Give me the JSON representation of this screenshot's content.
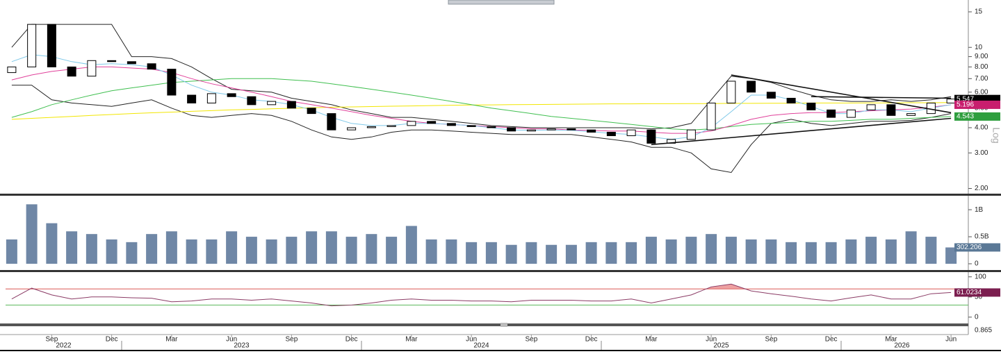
{
  "chart_data": [
    {
      "type": "candlestick",
      "log": true,
      "axis_title": "Log",
      "x": [
        "2022-07",
        "2022-08",
        "2022-09",
        "2022-10",
        "2022-11",
        "2022-12",
        "2023-01",
        "2023-02",
        "2023-03",
        "2023-04",
        "2023-05",
        "2023-06",
        "2023-07",
        "2023-08",
        "2023-09",
        "2023-10",
        "2023-11",
        "2023-12",
        "2024-01",
        "2024-02",
        "2024-03",
        "2024-04",
        "2024-05",
        "2024-06",
        "2024-07",
        "2024-08",
        "2024-09",
        "2024-10",
        "2024-11",
        "2024-12",
        "2025-01",
        "2025-02",
        "2025-03",
        "2025-04",
        "2025-05",
        "2025-06",
        "2025-07",
        "2025-08",
        "2025-09",
        "2025-10",
        "2025-11",
        "2025-12",
        "2026-01",
        "2026-02",
        "2026-03",
        "2026-04",
        "2026-05",
        "2026-06"
      ],
      "open": [
        7.5,
        8.0,
        13.0,
        8.0,
        7.2,
        8.6,
        8.5,
        8.3,
        7.8,
        5.8,
        5.3,
        5.9,
        5.7,
        5.2,
        5.4,
        5.0,
        4.7,
        3.9,
        4.0,
        4.05,
        4.1,
        4.3,
        4.2,
        4.1,
        4.05,
        4.0,
        3.85,
        3.9,
        3.95,
        3.9,
        3.8,
        3.65,
        3.9,
        3.35,
        3.5,
        3.9,
        5.3,
        6.8,
        6.0,
        5.6,
        5.3,
        4.9,
        4.5,
        4.9,
        5.2,
        4.6,
        4.7,
        5.3
      ],
      "close": [
        8.0,
        13.0,
        8.0,
        7.2,
        8.6,
        8.5,
        8.3,
        7.8,
        5.8,
        5.3,
        5.9,
        5.7,
        5.2,
        5.4,
        5.0,
        4.7,
        3.9,
        4.0,
        4.05,
        4.1,
        4.3,
        4.2,
        4.1,
        4.05,
        4.0,
        3.85,
        3.9,
        3.95,
        3.9,
        3.8,
        3.65,
        3.9,
        3.35,
        3.5,
        3.9,
        5.3,
        6.8,
        6.0,
        5.6,
        5.3,
        4.9,
        4.5,
        4.9,
        5.2,
        4.6,
        4.7,
        5.3,
        5.547
      ],
      "series": [
        {
          "color": "#222222",
          "values": [
            10,
            13,
            13,
            13,
            13,
            13,
            9.0,
            9.0,
            8.8,
            8.0,
            7.0,
            6.2,
            6.1,
            6.0,
            5.6,
            5.4,
            5.2,
            4.9,
            4.7,
            4.5,
            4.5,
            4.4,
            4.3,
            4.2,
            4.1,
            4.05,
            4.0,
            4.0,
            4.0,
            4.0,
            4.0,
            4.0,
            3.95,
            4.0,
            4.2,
            5.5,
            7.2,
            7.0,
            6.7,
            6.2,
            5.8,
            5.5,
            5.4,
            5.4,
            5.5,
            5.4,
            5.5,
            5.7
          ]
        },
        {
          "color": "#222222",
          "values": [
            6.5,
            6.5,
            5.5,
            5.3,
            5.2,
            5.1,
            5.3,
            5.5,
            5.0,
            4.6,
            4.5,
            4.6,
            4.7,
            4.6,
            4.3,
            3.9,
            3.6,
            3.5,
            3.6,
            3.8,
            3.9,
            3.9,
            3.85,
            3.8,
            3.75,
            3.7,
            3.7,
            3.7,
            3.7,
            3.6,
            3.5,
            3.4,
            3.2,
            3.2,
            3.0,
            2.5,
            2.4,
            3.3,
            4.2,
            4.4,
            4.2,
            4.1,
            4.2,
            4.3,
            4.3,
            4.35,
            4.5,
            4.7
          ]
        },
        {
          "color": "#f2e600",
          "values": [
            4.4,
            4.45,
            4.5,
            4.55,
            4.6,
            4.65,
            4.7,
            4.74,
            4.78,
            4.82,
            4.86,
            4.9,
            4.93,
            4.96,
            4.99,
            5.02,
            5.05,
            5.07,
            5.09,
            5.11,
            5.13,
            5.15,
            5.17,
            5.18,
            5.19,
            5.2,
            5.21,
            5.22,
            5.23,
            5.24,
            5.25,
            5.25,
            5.26,
            5.26,
            5.27,
            5.27,
            5.28,
            5.28,
            5.29,
            5.29,
            5.3,
            5.3,
            5.3,
            5.31,
            5.31,
            5.32,
            5.32,
            5.33
          ]
        },
        {
          "color": "#3fbf4f",
          "values": [
            4.5,
            4.8,
            5.2,
            5.5,
            5.8,
            6.1,
            6.3,
            6.5,
            6.7,
            6.8,
            6.9,
            7.0,
            7.0,
            7.0,
            6.9,
            6.8,
            6.6,
            6.4,
            6.2,
            6.0,
            5.8,
            5.6,
            5.4,
            5.2,
            5.0,
            4.85,
            4.7,
            4.55,
            4.45,
            4.35,
            4.25,
            4.15,
            4.05,
            3.95,
            3.9,
            3.95,
            4.05,
            4.15,
            4.2,
            4.25,
            4.3,
            4.3,
            4.35,
            4.4,
            4.4,
            4.45,
            4.5,
            4.543
          ]
        },
        {
          "color": "#e0409a",
          "values": [
            6.9,
            7.3,
            7.6,
            7.8,
            8.0,
            8.0,
            7.9,
            7.8,
            7.5,
            7.0,
            6.6,
            6.3,
            6.0,
            5.7,
            5.4,
            5.2,
            5.0,
            4.8,
            4.6,
            4.45,
            4.3,
            4.2,
            4.15,
            4.1,
            4.05,
            4.0,
            3.95,
            3.95,
            3.9,
            3.88,
            3.85,
            3.85,
            3.8,
            3.75,
            3.75,
            3.85,
            4.1,
            4.4,
            4.6,
            4.7,
            4.75,
            4.75,
            4.8,
            4.85,
            4.9,
            4.95,
            5.05,
            5.196
          ]
        },
        {
          "color": "#7ec8e8",
          "values": [
            8.5,
            9.2,
            9.0,
            8.5,
            8.2,
            8.3,
            8.2,
            8.0,
            7.3,
            6.5,
            6.0,
            5.8,
            5.5,
            5.4,
            5.2,
            4.9,
            4.5,
            4.2,
            4.1,
            4.1,
            4.2,
            4.2,
            4.15,
            4.1,
            4.0,
            3.9,
            3.88,
            3.9,
            3.88,
            3.82,
            3.75,
            3.7,
            3.6,
            3.5,
            3.6,
            4.0,
            4.8,
            5.8,
            5.8,
            5.5,
            5.1,
            4.7,
            4.7,
            4.9,
            4.9,
            4.8,
            5.0,
            5.2
          ]
        }
      ],
      "trendlines": [
        {
          "x": [
            "2025-07",
            "2026-06"
          ],
          "values": [
            7.3,
            4.75
          ]
        },
        {
          "x": [
            "2025-03",
            "2026-06"
          ],
          "values": [
            3.3,
            4.45
          ]
        },
        {
          "x": [
            "2025-11",
            "2026-06"
          ],
          "values": [
            5.7,
            5.6
          ]
        }
      ],
      "ylim": [
        1.9,
        16.5
      ],
      "yticks": [
        {
          "value": 2,
          "label": "2.00"
        },
        {
          "value": 3,
          "label": "3.00"
        },
        {
          "value": 4,
          "label": "4.00"
        },
        {
          "value": 5,
          "label": "5.00"
        },
        {
          "value": 6,
          "label": "6.00"
        },
        {
          "value": 7,
          "label": "7.00"
        },
        {
          "value": 8,
          "label": "8.00"
        },
        {
          "value": 9,
          "label": "9.00"
        },
        10,
        15
      ],
      "badges": [
        {
          "value": 5.547,
          "color": "#000000"
        },
        {
          "value": 5.196,
          "color": "#c81e6e"
        },
        {
          "value": 4.543,
          "color": "#2e9e3e"
        }
      ]
    },
    {
      "type": "bar",
      "color": "#6f87a6",
      "x": [
        "2022-07",
        "2022-08",
        "2022-09",
        "2022-10",
        "2022-11",
        "2022-12",
        "2023-01",
        "2023-02",
        "2023-03",
        "2023-04",
        "2023-05",
        "2023-06",
        "2023-07",
        "2023-08",
        "2023-09",
        "2023-10",
        "2023-11",
        "2023-12",
        "2024-01",
        "2024-02",
        "2024-03",
        "2024-04",
        "2024-05",
        "2024-06",
        "2024-07",
        "2024-08",
        "2024-09",
        "2024-10",
        "2024-11",
        "2024-12",
        "2025-01",
        "2025-02",
        "2025-03",
        "2025-04",
        "2025-05",
        "2025-06",
        "2025-07",
        "2025-08",
        "2025-09",
        "2025-10",
        "2025-11",
        "2025-12",
        "2026-01",
        "2026-02",
        "2026-03",
        "2026-04",
        "2026-05",
        "2026-06"
      ],
      "values": [
        0.45,
        1.1,
        0.75,
        0.6,
        0.55,
        0.45,
        0.4,
        0.55,
        0.6,
        0.45,
        0.45,
        0.6,
        0.5,
        0.45,
        0.5,
        0.6,
        0.6,
        0.5,
        0.55,
        0.5,
        0.7,
        0.45,
        0.45,
        0.4,
        0.4,
        0.35,
        0.4,
        0.35,
        0.35,
        0.4,
        0.4,
        0.4,
        0.5,
        0.45,
        0.5,
        0.55,
        0.5,
        0.45,
        0.45,
        0.4,
        0.4,
        0.4,
        0.45,
        0.5,
        0.45,
        0.6,
        0.5,
        0.302206
      ],
      "ylim": [
        0,
        1.22
      ],
      "yticks": [
        0,
        {
          "value": 0.5,
          "label": "0.5B"
        },
        {
          "value": 1,
          "label": "1B"
        }
      ],
      "badges": [
        {
          "value": 0.302206,
          "label": "302.206",
          "color": "#5a7896"
        }
      ]
    },
    {
      "type": "line",
      "color": "#8a3a64",
      "x": [
        "2022-07",
        "2022-08",
        "2022-09",
        "2022-10",
        "2022-11",
        "2022-12",
        "2023-01",
        "2023-02",
        "2023-03",
        "2023-04",
        "2023-05",
        "2023-06",
        "2023-07",
        "2023-08",
        "2023-09",
        "2023-10",
        "2023-11",
        "2023-12",
        "2024-01",
        "2024-02",
        "2024-03",
        "2024-04",
        "2024-05",
        "2024-06",
        "2024-07",
        "2024-08",
        "2024-09",
        "2024-10",
        "2024-11",
        "2024-12",
        "2025-01",
        "2025-02",
        "2025-03",
        "2025-04",
        "2025-05",
        "2025-06",
        "2025-07",
        "2025-08",
        "2025-09",
        "2025-10",
        "2025-11",
        "2025-12",
        "2026-01",
        "2026-02",
        "2026-03",
        "2026-04",
        "2026-05",
        "2026-06"
      ],
      "values": [
        45,
        72,
        55,
        45,
        50,
        50,
        48,
        47,
        38,
        40,
        45,
        45,
        42,
        45,
        40,
        35,
        28,
        30,
        35,
        42,
        45,
        42,
        42,
        40,
        40,
        38,
        42,
        42,
        42,
        40,
        40,
        45,
        35,
        45,
        55,
        75,
        82,
        65,
        58,
        52,
        45,
        40,
        48,
        55,
        45,
        45,
        58,
        61.0234
      ],
      "ylim": [
        -14,
        110
      ],
      "yticks": [
        0,
        50,
        100
      ],
      "ref_lines": [
        {
          "value": 70,
          "color": "#d9534f"
        },
        {
          "value": 30,
          "color": "#5cb85c"
        }
      ],
      "fill_above": 70,
      "badges": [
        {
          "value": 61.0234,
          "color": "#7b1e4f"
        }
      ]
    }
  ],
  "lower_panel_tick": 0.865,
  "x_axis": {
    "months": [
      {
        "value": "2022-09",
        "label": "Sep"
      },
      {
        "value": "2022-12",
        "label": "Dec"
      },
      {
        "value": "2023-03",
        "label": "Mar"
      },
      {
        "value": "2023-06",
        "label": "Jun"
      },
      {
        "value": "2023-09",
        "label": "Sep"
      },
      {
        "value": "2023-12",
        "label": "Dec"
      },
      {
        "value": "2024-03",
        "label": "Mar"
      },
      {
        "value": "2024-06",
        "label": "Jun"
      },
      {
        "value": "2024-09",
        "label": "Sep"
      },
      {
        "value": "2024-12",
        "label": "Dec"
      },
      {
        "value": "2025-03",
        "label": "Mar"
      },
      {
        "value": "2025-06",
        "label": "Jun"
      },
      {
        "value": "2025-09",
        "label": "Sep"
      },
      {
        "value": "2025-12",
        "label": "Dec"
      },
      {
        "value": "2026-03",
        "label": "Mar"
      },
      {
        "value": "2026-06",
        "label": "Jun"
      }
    ],
    "years": [
      2022,
      2023,
      2024,
      2025,
      2026
    ]
  }
}
